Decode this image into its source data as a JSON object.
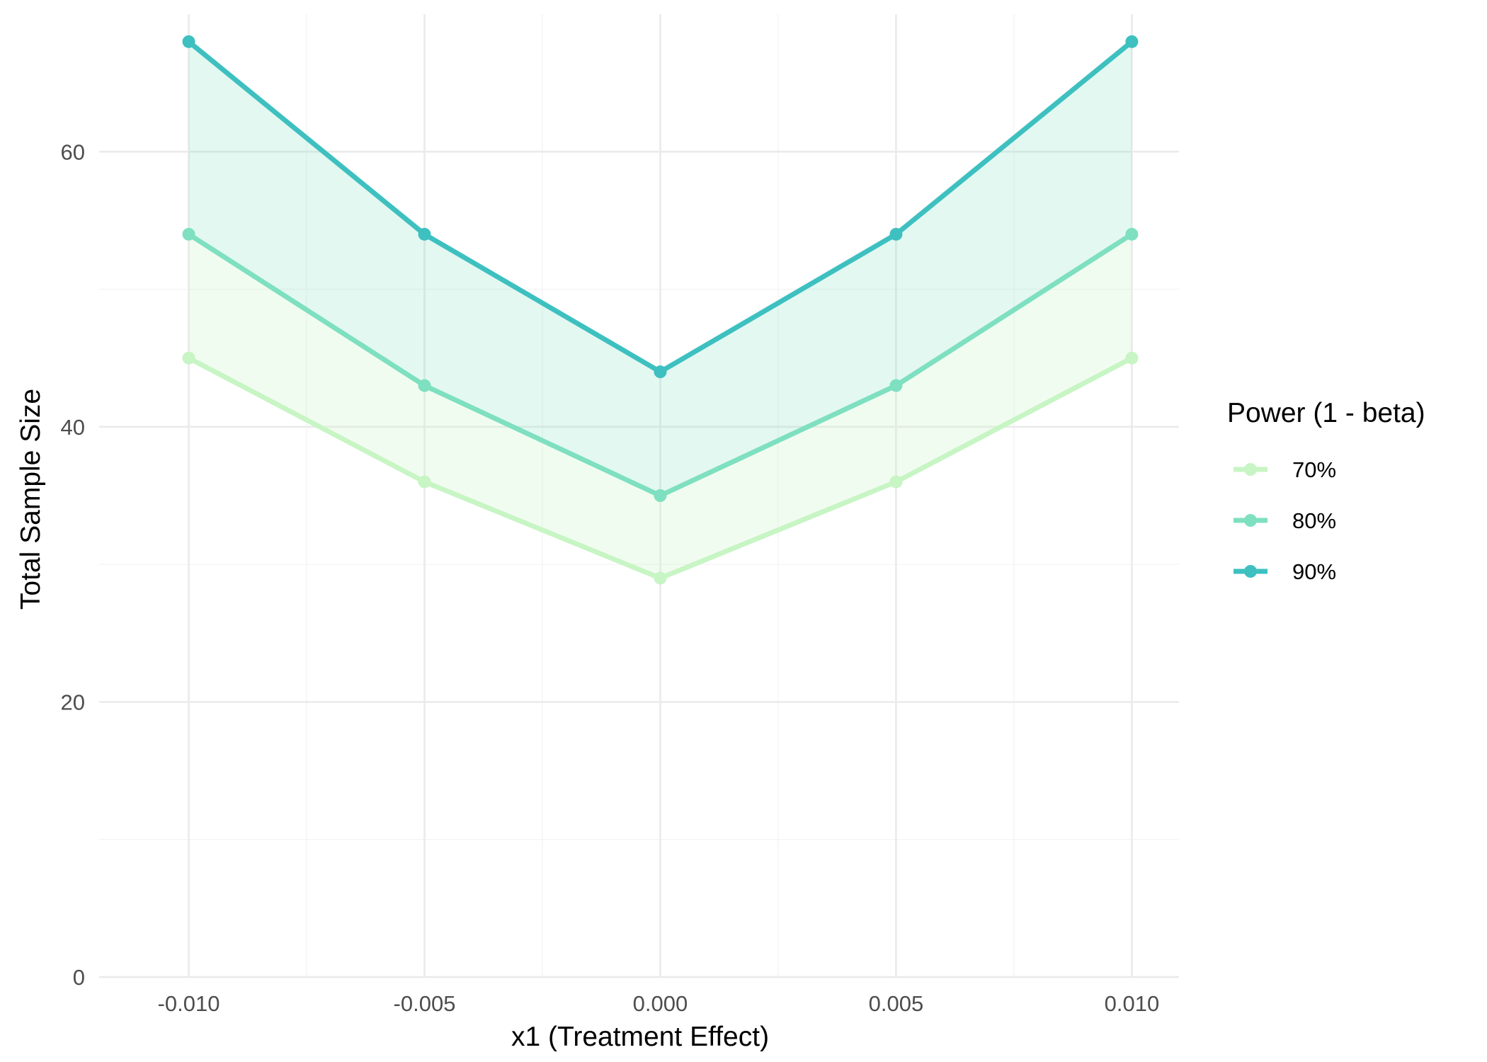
{
  "chart_data": {
    "type": "line",
    "xlabel": "x1 (Treatment Effect)",
    "ylabel": "Total Sample Size",
    "x": [
      -0.01,
      -0.005,
      0.0,
      0.005,
      0.01
    ],
    "x_tick_labels": [
      "-0.010",
      "-0.005",
      "0.000",
      "0.005",
      "0.010"
    ],
    "y_ticks": [
      0,
      20,
      40,
      60
    ],
    "y_tick_labels": [
      "0",
      "20",
      "40",
      "60"
    ],
    "xlim": [
      -0.0119,
      0.011
    ],
    "ylim": [
      0,
      70
    ],
    "grid": true,
    "legend": {
      "title": "Power (1 - beta)",
      "position": "right"
    },
    "series": [
      {
        "name": "70%",
        "values": [
          45,
          36,
          29,
          36,
          45
        ],
        "color": "#c7f5c4"
      },
      {
        "name": "80%",
        "values": [
          54,
          43,
          35,
          43,
          54
        ],
        "color": "#7ee0c0"
      },
      {
        "name": "90%",
        "values": [
          68,
          54,
          44,
          54,
          68
        ],
        "color": "#3ec0c0"
      }
    ],
    "bands": [
      {
        "between": [
          "70%",
          "80%"
        ],
        "color": "#c7f5c4",
        "opacity": 0.25
      },
      {
        "between": [
          "80%",
          "90%"
        ],
        "color": "#7ee0c0",
        "opacity": 0.22
      }
    ]
  }
}
